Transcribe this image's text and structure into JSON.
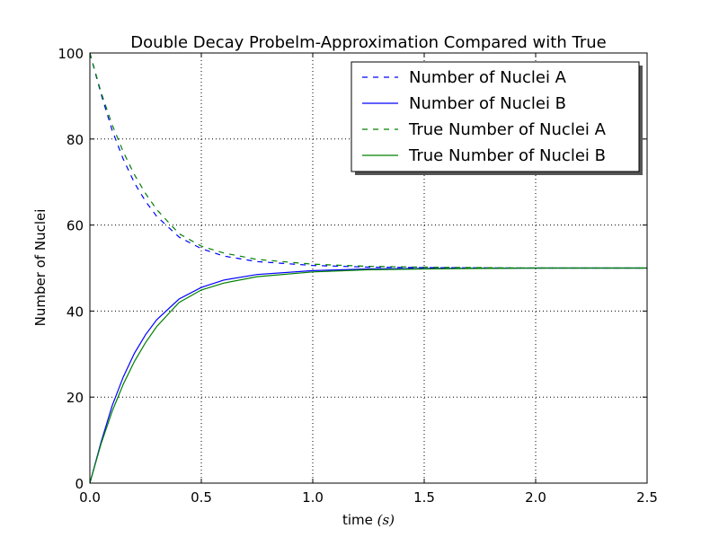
{
  "chart_data": {
    "type": "line",
    "title": "Double Decay Probelm-Approximation Compared with True",
    "xlabel_prefix": "time ",
    "xlabel_unit": "(s)",
    "ylabel": "Number of Nuclei",
    "xlim": [
      0,
      2.5
    ],
    "ylim": [
      0,
      100
    ],
    "xticks": [
      "0.0",
      "0.5",
      "1.0",
      "1.5",
      "2.0",
      "2.5"
    ],
    "yticks": [
      "0",
      "20",
      "40",
      "60",
      "80",
      "100"
    ],
    "grid": true,
    "legend_position": "top-right",
    "series": [
      {
        "name": "Number of Nuclei A",
        "color": "#0000ff",
        "style": "dashed",
        "x": [
          0,
          0.05,
          0.1,
          0.15,
          0.2,
          0.25,
          0.3,
          0.4,
          0.5,
          0.6,
          0.75,
          1.0,
          1.25,
          1.5,
          2.0,
          2.5
        ],
        "y": [
          100,
          90.5,
          82.0,
          75.3,
          69.8,
          65.5,
          62.0,
          57.2,
          54.5,
          52.8,
          51.5,
          50.6,
          50.2,
          50.1,
          50.0,
          50.0
        ]
      },
      {
        "name": "Number of Nuclei B",
        "color": "#0000ff",
        "style": "solid",
        "x": [
          0,
          0.05,
          0.1,
          0.15,
          0.2,
          0.25,
          0.3,
          0.4,
          0.5,
          0.6,
          0.75,
          1.0,
          1.25,
          1.5,
          2.0,
          2.5
        ],
        "y": [
          0,
          9.5,
          18.0,
          24.7,
          30.2,
          34.5,
          38.0,
          42.8,
          45.5,
          47.2,
          48.5,
          49.4,
          49.8,
          49.9,
          50.0,
          50.0
        ]
      },
      {
        "name": "True Number of Nuclei A",
        "color": "#008000",
        "style": "dashed",
        "x": [
          0,
          0.05,
          0.1,
          0.15,
          0.2,
          0.25,
          0.3,
          0.4,
          0.5,
          0.6,
          0.75,
          1.0,
          1.25,
          1.5,
          2.0,
          2.5
        ],
        "y": [
          100,
          90.9,
          83.3,
          77.0,
          71.7,
          67.3,
          63.6,
          58.0,
          55.1,
          53.5,
          52.0,
          50.9,
          50.4,
          50.2,
          50.0,
          50.0
        ]
      },
      {
        "name": "True Number of Nuclei B",
        "color": "#008000",
        "style": "solid",
        "x": [
          0,
          0.05,
          0.1,
          0.15,
          0.2,
          0.25,
          0.3,
          0.4,
          0.5,
          0.6,
          0.75,
          1.0,
          1.25,
          1.5,
          2.0,
          2.5
        ],
        "y": [
          0,
          9.1,
          16.7,
          23.0,
          28.3,
          32.7,
          36.4,
          42.0,
          44.9,
          46.5,
          48.0,
          49.1,
          49.6,
          49.8,
          50.0,
          50.0
        ]
      }
    ]
  }
}
